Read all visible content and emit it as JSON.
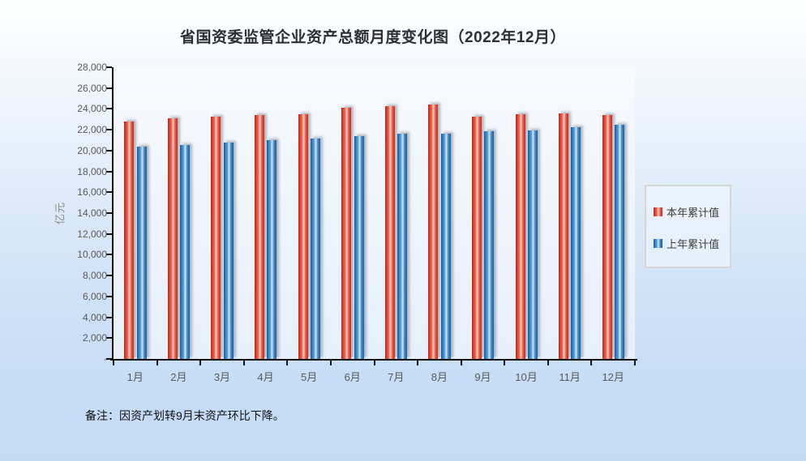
{
  "title": "省国资委监管企业资产总额月度变化图（2022年12月）",
  "footnote": "备注：因资产划转9月末资产环比下降。",
  "y_axis": {
    "unit_label": "亿元",
    "tick_labels_top_to_bottom": [
      "28,000",
      "26,000",
      "24,000",
      "22,000",
      "20,000",
      "18,000",
      "16,000",
      "14,000",
      "12,000",
      "10,000",
      "8,000",
      "6,000",
      "4,000",
      "2,000",
      "-"
    ],
    "max": 28000,
    "min": 0,
    "step": 2000
  },
  "chart_data": {
    "type": "bar",
    "title": "省国资委监管企业资产总额月度变化图（2022年12月）",
    "categories": [
      "1月",
      "2月",
      "3月",
      "4月",
      "5月",
      "6月",
      "7月",
      "8月",
      "9月",
      "10月",
      "11月",
      "12月"
    ],
    "series": [
      {
        "name": "本年累计值",
        "color": "#e8442e",
        "style_key": "red",
        "values": [
          22800,
          23100,
          23250,
          23400,
          23500,
          24100,
          24300,
          24450,
          23250,
          23500,
          23550,
          23450
        ]
      },
      {
        "name": "上年累计值",
        "color": "#2e7fc2",
        "style_key": "blue",
        "values": [
          20350,
          20500,
          20800,
          21000,
          21150,
          21400,
          21600,
          21650,
          21850,
          21950,
          22250,
          22500
        ]
      }
    ],
    "xlabel": "",
    "ylabel": "亿元",
    "ylim": [
      0,
      28000
    ],
    "grid": false,
    "legend_position": "right",
    "bar_effect": "cylinder-gradient-with-shadow"
  }
}
